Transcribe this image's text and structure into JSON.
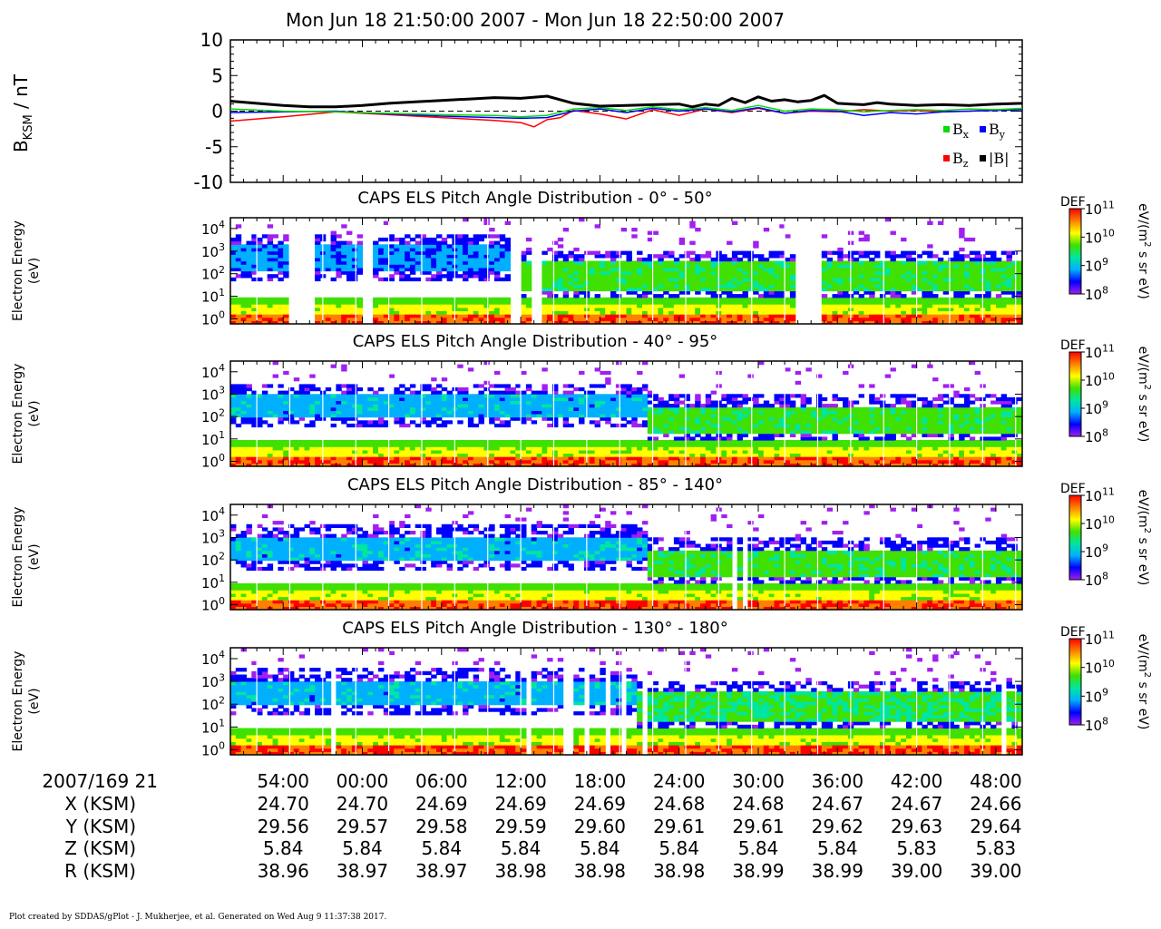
{
  "header": {
    "title": "Mon Jun 18 21:50:00 2007 - Mon Jun 18 22:50:00 2007"
  },
  "footer": {
    "text": "Plot created by SDDAS/gPlot - J. Mukherjee, et al.  Generated on Wed Aug 9 11:37:38 2017."
  },
  "colors": {
    "bx": "#00dd00",
    "by": "#0000ff",
    "bz": "#ff0000",
    "bmag": "#000000",
    "colormap": [
      "#ffffff",
      "#a020f0",
      "#0000ff",
      "#00b0ff",
      "#00e6a0",
      "#40e000",
      "#ffff00",
      "#ff8000",
      "#ff0000"
    ]
  },
  "chart_data": [
    {
      "type": "line",
      "ylabel": "B",
      "ylabel_sub": "KSM",
      "ylabel_unit": " / nT",
      "ylim": [
        -10,
        10
      ],
      "yticks": [
        10,
        5,
        0,
        -5,
        -10
      ],
      "xlim": [
        0,
        60
      ],
      "x_unit": "minutes after 2007/169 21:50",
      "zero_line": "dashed",
      "legend": [
        {
          "key": "bx",
          "main": "B",
          "sub": "x"
        },
        {
          "key": "by",
          "main": "B",
          "sub": "y"
        },
        {
          "key": "bz",
          "main": "B",
          "sub": "z"
        },
        {
          "key": "bmag",
          "main": "|B|",
          "sub": ""
        }
      ],
      "legend_position": "lower-right",
      "series": [
        {
          "key": "bmag",
          "x": [
            0,
            2,
            4,
            6,
            8,
            10,
            12,
            14,
            16,
            18,
            20,
            22,
            24,
            26,
            28,
            30,
            32,
            34,
            35,
            36,
            37,
            38,
            39,
            40,
            41,
            42,
            43,
            44,
            45,
            46,
            47,
            48,
            49,
            50,
            52,
            54,
            56,
            58,
            60
          ],
          "y": [
            1.4,
            1.1,
            0.8,
            0.6,
            0.6,
            0.8,
            1.1,
            1.3,
            1.5,
            1.7,
            1.9,
            1.8,
            2.1,
            1.1,
            0.7,
            0.8,
            0.9,
            1.0,
            0.6,
            1.0,
            0.8,
            1.8,
            1.2,
            2.0,
            1.4,
            1.6,
            1.3,
            1.5,
            2.2,
            1.1,
            1.0,
            0.9,
            1.2,
            1.0,
            0.8,
            0.9,
            0.8,
            1.0,
            1.1
          ]
        },
        {
          "key": "bx",
          "x": [
            0,
            4,
            8,
            12,
            16,
            20,
            22,
            24,
            26,
            28,
            30,
            32,
            34,
            36,
            38,
            40,
            42,
            44,
            46,
            48,
            50,
            52,
            54,
            56,
            58,
            60
          ],
          "y": [
            0.3,
            0.0,
            -0.1,
            -0.3,
            -0.5,
            -0.6,
            -0.8,
            -0.6,
            0.3,
            0.5,
            0.1,
            0.6,
            0.2,
            0.5,
            0.1,
            0.8,
            0.0,
            0.3,
            0.2,
            -0.1,
            0.1,
            0.2,
            0.1,
            0.3,
            0.2,
            0.4
          ]
        },
        {
          "key": "by",
          "x": [
            0,
            4,
            8,
            12,
            16,
            20,
            22,
            24,
            26,
            28,
            30,
            32,
            34,
            36,
            38,
            40,
            42,
            44,
            46,
            48,
            50,
            52,
            54,
            56,
            58,
            60
          ],
          "y": [
            -0.2,
            -0.1,
            0.0,
            -0.4,
            -0.7,
            -0.9,
            -1.0,
            -0.9,
            0.0,
            0.3,
            -0.2,
            0.4,
            0.0,
            0.3,
            -0.1,
            0.5,
            -0.3,
            0.1,
            0.0,
            -0.6,
            -0.2,
            -0.4,
            -0.1,
            0.0,
            0.1,
            0.2
          ]
        },
        {
          "key": "bz",
          "x": [
            0,
            4,
            8,
            12,
            16,
            20,
            22,
            23,
            24,
            25,
            26,
            28,
            30,
            32,
            34,
            36,
            38,
            40,
            42,
            44,
            46,
            48,
            50,
            52,
            54,
            56,
            58,
            60
          ],
          "y": [
            -1.4,
            -0.8,
            -0.1,
            -0.5,
            -0.9,
            -1.3,
            -1.6,
            -2.2,
            -1.2,
            -0.9,
            0.1,
            -0.4,
            -1.1,
            0.2,
            -0.6,
            0.3,
            -0.2,
            0.4,
            -0.3,
            0.0,
            -0.1,
            0.2,
            0.0,
            0.1,
            -0.1,
            0.0,
            0.2,
            0.3
          ]
        }
      ]
    },
    {
      "type": "heatmap",
      "title": "CAPS ELS Pitch Angle Distribution - 0° - 50°",
      "ylabel_lines": [
        "Electron Energy",
        "(eV)"
      ],
      "y_scale": "log",
      "ylim": [
        0.6,
        30000
      ],
      "yticks": [
        {
          "b": "10",
          "e": "0"
        },
        {
          "b": "10",
          "e": "1"
        },
        {
          "b": "10",
          "e": "2"
        },
        {
          "b": "10",
          "e": "3"
        },
        {
          "b": "10",
          "e": "4"
        }
      ],
      "colorbar": {
        "label": "DEF",
        "unit_lines": [
          "eV/(m",
          "2",
          " s sr eV)"
        ],
        "ticks": [
          {
            "b": "10",
            "e": "11"
          },
          {
            "b": "10",
            "e": "10"
          },
          {
            "b": "10",
            "e": "9"
          },
          {
            "b": "10",
            "e": "8"
          }
        ],
        "range": [
          100000000.0,
          100000000000.0
        ]
      },
      "transition_minute": 21.5,
      "bands_before": [
        {
          "lo": 150,
          "hi": 2000,
          "level": 0.25
        }
      ],
      "bands_after": [
        {
          "lo": 20,
          "hi": 400,
          "level": 0.55
        }
      ],
      "gaps_minutes": [
        [
          4.6,
          6.4
        ],
        [
          10.2,
          10.6
        ],
        [
          21.3,
          22.0
        ],
        [
          23.0,
          23.5
        ],
        [
          42.6,
          44.6
        ]
      ]
    },
    {
      "type": "heatmap",
      "title": "CAPS ELS Pitch Angle Distribution - 40° - 95°",
      "ylabel_lines": [
        "Electron Energy",
        "(eV)"
      ],
      "y_scale": "log",
      "ylim": [
        0.6,
        30000
      ],
      "yticks": [
        {
          "b": "10",
          "e": "0"
        },
        {
          "b": "10",
          "e": "1"
        },
        {
          "b": "10",
          "e": "2"
        },
        {
          "b": "10",
          "e": "3"
        },
        {
          "b": "10",
          "e": "4"
        }
      ],
      "colorbar": {
        "label": "DEF",
        "unit_lines": [
          "eV/(m",
          "2",
          " s sr eV)"
        ],
        "ticks": [
          {
            "b": "10",
            "e": "11"
          },
          {
            "b": "10",
            "e": "10"
          },
          {
            "b": "10",
            "e": "9"
          },
          {
            "b": "10",
            "e": "8"
          }
        ],
        "range": [
          100000000.0,
          100000000000.0
        ]
      },
      "transition_minute": 31.5,
      "bands_before": [
        {
          "lo": 100,
          "hi": 1000,
          "level": 0.3
        }
      ],
      "bands_after": [
        {
          "lo": 15,
          "hi": 300,
          "level": 0.55
        }
      ],
      "gaps_minutes": []
    },
    {
      "type": "heatmap",
      "title": "CAPS ELS Pitch Angle Distribution - 85° - 140°",
      "ylabel_lines": [
        "Electron Energy",
        "(eV)"
      ],
      "y_scale": "log",
      "ylim": [
        0.6,
        30000
      ],
      "yticks": [
        {
          "b": "10",
          "e": "0"
        },
        {
          "b": "10",
          "e": "1"
        },
        {
          "b": "10",
          "e": "2"
        },
        {
          "b": "10",
          "e": "3"
        },
        {
          "b": "10",
          "e": "4"
        }
      ],
      "colorbar": {
        "label": "DEF",
        "unit_lines": [
          "eV/(m",
          "2",
          " s sr eV)"
        ],
        "ticks": [
          {
            "b": "10",
            "e": "11"
          },
          {
            "b": "10",
            "e": "10"
          },
          {
            "b": "10",
            "e": "9"
          },
          {
            "b": "10",
            "e": "8"
          }
        ],
        "range": [
          100000000.0,
          100000000000.0
        ]
      },
      "transition_minute": 31.5,
      "bands_before": [
        {
          "lo": 100,
          "hi": 1200,
          "level": 0.3
        }
      ],
      "bands_after": [
        {
          "lo": 15,
          "hi": 300,
          "level": 0.55
        }
      ],
      "gaps_minutes": [
        [
          38.0,
          38.3
        ],
        [
          39.0,
          39.2
        ]
      ]
    },
    {
      "type": "heatmap",
      "title": "CAPS ELS Pitch Angle Distribution - 130° - 180°",
      "ylabel_lines": [
        "Electron Energy",
        "(eV)"
      ],
      "y_scale": "log",
      "ylim": [
        0.6,
        30000
      ],
      "yticks": [
        {
          "b": "10",
          "e": "0"
        },
        {
          "b": "10",
          "e": "1"
        },
        {
          "b": "10",
          "e": "2"
        },
        {
          "b": "10",
          "e": "3"
        },
        {
          "b": "10",
          "e": "4"
        }
      ],
      "colorbar": {
        "label": "DEF",
        "unit_lines": [
          "eV/(m",
          "2",
          " s sr eV)"
        ],
        "ticks": [
          {
            "b": "10",
            "e": "11"
          },
          {
            "b": "10",
            "e": "10"
          },
          {
            "b": "10",
            "e": "9"
          },
          {
            "b": "10",
            "e": "8"
          }
        ],
        "range": [
          100000000.0,
          100000000000.0
        ]
      },
      "transition_minute": 31.0,
      "bands_before": [
        {
          "lo": 100,
          "hi": 1200,
          "level": 0.3
        }
      ],
      "bands_after": [
        {
          "lo": 20,
          "hi": 400,
          "level": 0.5
        }
      ],
      "gaps_minutes": [
        [
          7.5,
          8.0
        ],
        [
          22.5,
          22.8
        ],
        [
          25.3,
          25.8
        ],
        [
          27.0,
          27.3
        ],
        [
          28.3,
          28.6
        ],
        [
          29.6,
          30.0
        ],
        [
          31.1,
          31.6
        ],
        [
          57.5,
          57.8
        ],
        [
          58.3,
          58.6
        ]
      ]
    }
  ],
  "x_axis": {
    "ticks_minutes": [
      4,
      10,
      16,
      22,
      28,
      34,
      40,
      46,
      52,
      58
    ],
    "rows": [
      {
        "label": "2007/169 21",
        "values": [
          "54:00",
          "00:00",
          "06:00",
          "12:00",
          "18:00",
          "24:00",
          "30:00",
          "36:00",
          "42:00",
          "48:00"
        ]
      },
      {
        "label": "X (KSM)",
        "values": [
          "24.70",
          "24.70",
          "24.69",
          "24.69",
          "24.69",
          "24.68",
          "24.68",
          "24.67",
          "24.67",
          "24.66"
        ]
      },
      {
        "label": "Y (KSM)",
        "values": [
          "29.56",
          "29.57",
          "29.58",
          "29.59",
          "29.60",
          "29.61",
          "29.61",
          "29.62",
          "29.63",
          "29.64"
        ]
      },
      {
        "label": "Z (KSM)",
        "values": [
          "5.84",
          "5.84",
          "5.84",
          "5.84",
          "5.84",
          "5.84",
          "5.84",
          "5.84",
          "5.83",
          "5.83"
        ]
      },
      {
        "label": "R (KSM)",
        "values": [
          "38.96",
          "38.97",
          "38.97",
          "38.98",
          "38.98",
          "38.98",
          "38.99",
          "38.99",
          "39.00",
          "39.00"
        ]
      }
    ]
  }
}
